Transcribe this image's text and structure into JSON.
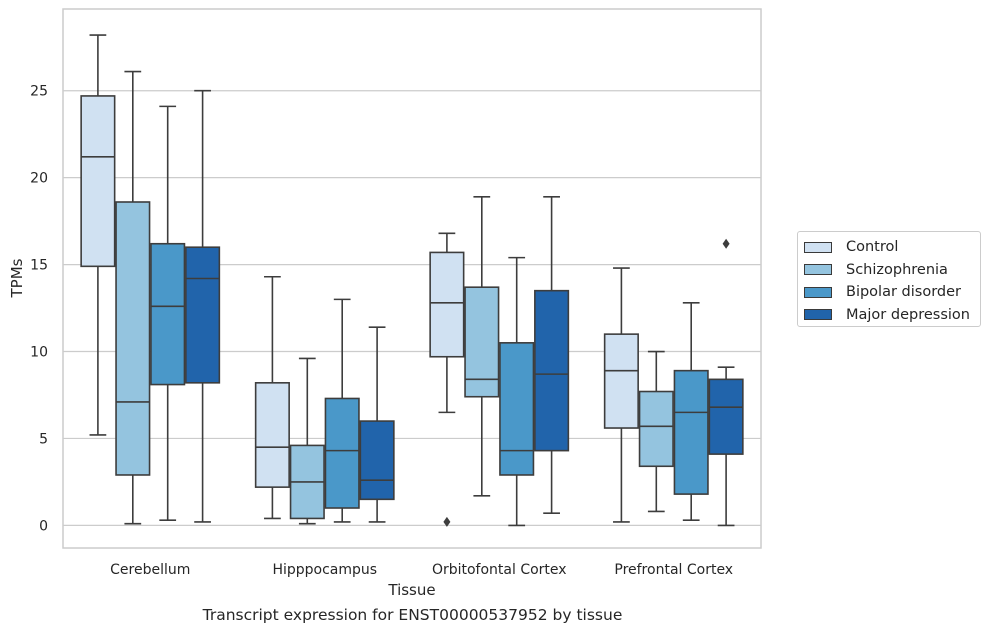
{
  "chart_data": {
    "type": "box",
    "title": "",
    "xlabel": "Tissue",
    "ylabel": "TPMs",
    "caption": "Transcript expression for ENST00000537952 by tissue",
    "categories": [
      "Cerebellum",
      "Hipppocampus",
      "Orbitofontal Cortex",
      "Prefrontal Cortex"
    ],
    "ylim": [
      -1.3,
      29.7
    ],
    "yticks": [
      0,
      5,
      10,
      15,
      20,
      25
    ],
    "grid": "horizontal",
    "legend_position": "right",
    "series": [
      {
        "name": "Control",
        "color": "#d0e1f2",
        "boxes": [
          {
            "whisker_low": 5.2,
            "q1": 14.9,
            "median": 21.2,
            "q3": 24.7,
            "whisker_high": 28.2,
            "outliers": []
          },
          {
            "whisker_low": 0.4,
            "q1": 2.2,
            "median": 4.5,
            "q3": 8.2,
            "whisker_high": 14.3,
            "outliers": []
          },
          {
            "whisker_low": 6.5,
            "q1": 9.7,
            "median": 12.8,
            "q3": 15.7,
            "whisker_high": 16.8,
            "outliers": [
              0.2
            ]
          },
          {
            "whisker_low": 0.2,
            "q1": 5.6,
            "median": 8.9,
            "q3": 11.0,
            "whisker_high": 14.8,
            "outliers": []
          }
        ]
      },
      {
        "name": "Schizophrenia",
        "color": "#94c4df",
        "boxes": [
          {
            "whisker_low": 0.1,
            "q1": 2.9,
            "median": 7.1,
            "q3": 18.6,
            "whisker_high": 26.1,
            "outliers": []
          },
          {
            "whisker_low": 0.1,
            "q1": 0.4,
            "median": 2.5,
            "q3": 4.6,
            "whisker_high": 9.6,
            "outliers": []
          },
          {
            "whisker_low": 1.7,
            "q1": 7.4,
            "median": 8.4,
            "q3": 13.7,
            "whisker_high": 18.9,
            "outliers": []
          },
          {
            "whisker_low": 0.8,
            "q1": 3.4,
            "median": 5.7,
            "q3": 7.7,
            "whisker_high": 10.0,
            "outliers": []
          }
        ]
      },
      {
        "name": "Bipolar disorder",
        "color": "#4a98c9",
        "boxes": [
          {
            "whisker_low": 0.3,
            "q1": 8.1,
            "median": 12.6,
            "q3": 16.2,
            "whisker_high": 24.1,
            "outliers": []
          },
          {
            "whisker_low": 0.2,
            "q1": 1.0,
            "median": 4.3,
            "q3": 7.3,
            "whisker_high": 13.0,
            "outliers": []
          },
          {
            "whisker_low": 0.0,
            "q1": 2.9,
            "median": 4.3,
            "q3": 10.5,
            "whisker_high": 15.4,
            "outliers": []
          },
          {
            "whisker_low": 0.3,
            "q1": 1.8,
            "median": 6.5,
            "q3": 8.9,
            "whisker_high": 12.8,
            "outliers": []
          }
        ]
      },
      {
        "name": "Major depression",
        "color": "#2164ab",
        "boxes": [
          {
            "whisker_low": 0.2,
            "q1": 8.2,
            "median": 14.2,
            "q3": 16.0,
            "whisker_high": 25.0,
            "outliers": []
          },
          {
            "whisker_low": 0.2,
            "q1": 1.5,
            "median": 2.6,
            "q3": 6.0,
            "whisker_high": 11.4,
            "outliers": []
          },
          {
            "whisker_low": 0.7,
            "q1": 4.3,
            "median": 8.7,
            "q3": 13.5,
            "whisker_high": 18.9,
            "outliers": []
          },
          {
            "whisker_low": 0.0,
            "q1": 4.1,
            "median": 6.8,
            "q3": 8.4,
            "whisker_high": 9.1,
            "outliers": [
              16.2
            ]
          }
        ]
      }
    ]
  }
}
